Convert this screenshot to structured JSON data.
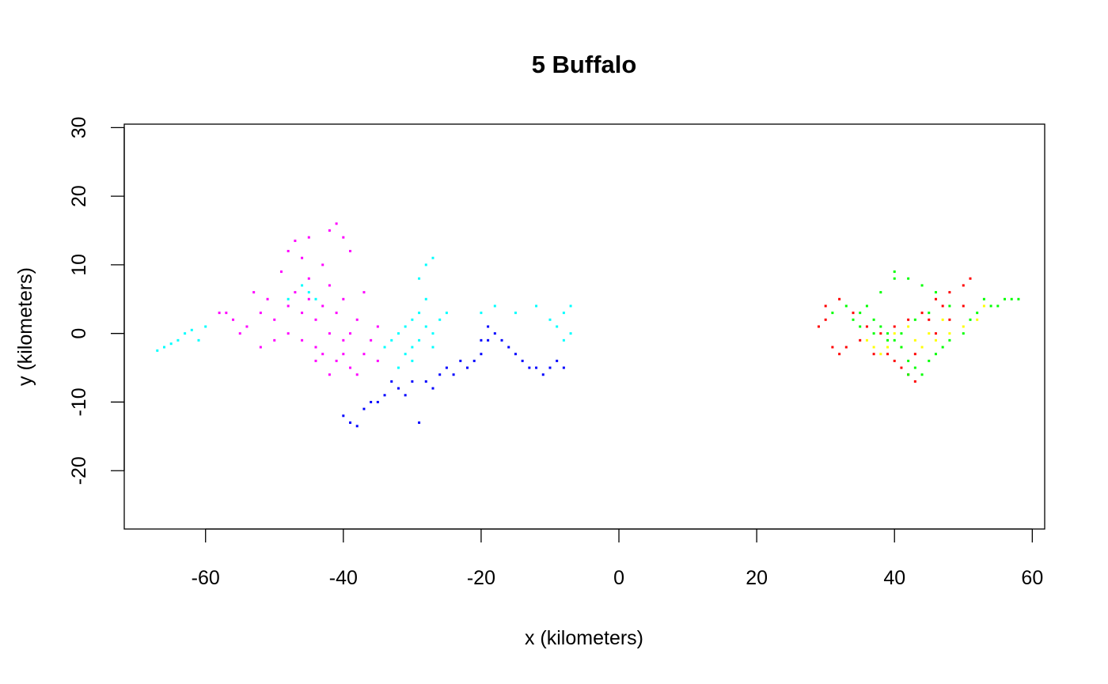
{
  "chart_data": {
    "type": "scatter",
    "title": "5 Buffalo",
    "xlabel": "x (kilometers)",
    "ylabel": "y (kilometers)",
    "xlim": [
      -71.8,
      61.8
    ],
    "ylim": [
      -28.5,
      30.5
    ],
    "xticks": [
      -60,
      -40,
      -20,
      0,
      20,
      40,
      60
    ],
    "yticks": [
      -20,
      -10,
      0,
      10,
      20,
      30
    ],
    "grid": false,
    "legend": "none",
    "series": [
      {
        "color": "#FF00FF",
        "points": [
          [
            -42,
            0
          ],
          [
            -44,
            2
          ],
          [
            -46,
            3
          ],
          [
            -40,
            -1
          ],
          [
            -48,
            4
          ],
          [
            -50,
            2
          ],
          [
            -52,
            3
          ],
          [
            -54,
            1
          ],
          [
            -56,
            2
          ],
          [
            -57,
            3
          ],
          [
            -43,
            -3
          ],
          [
            -41,
            -4
          ],
          [
            -39,
            -5
          ],
          [
            -37,
            -3
          ],
          [
            -36,
            -1
          ],
          [
            -38,
            2
          ],
          [
            -40,
            5
          ],
          [
            -42,
            7
          ],
          [
            -45,
            8
          ],
          [
            -47,
            6
          ],
          [
            -49,
            9
          ],
          [
            -48,
            12
          ],
          [
            -47,
            13.5
          ],
          [
            -45,
            14
          ],
          [
            -42,
            15
          ],
          [
            -41,
            16
          ],
          [
            -40,
            14
          ],
          [
            -39,
            12
          ],
          [
            -43,
            10
          ],
          [
            -46,
            11
          ],
          [
            -44,
            -2
          ],
          [
            -42,
            -6
          ],
          [
            -38,
            -6
          ],
          [
            -35,
            -4
          ],
          [
            -35,
            1
          ],
          [
            -37,
            6
          ],
          [
            -50,
            -1
          ],
          [
            -52,
            -2
          ],
          [
            -55,
            0
          ],
          [
            -58,
            3
          ],
          [
            -53,
            6
          ],
          [
            -45,
            5
          ],
          [
            -43,
            4
          ],
          [
            -41,
            3
          ],
          [
            -39,
            0
          ],
          [
            -40,
            -3
          ],
          [
            -44,
            -4
          ],
          [
            -46,
            -1
          ],
          [
            -48,
            0
          ],
          [
            -51,
            5
          ]
        ]
      },
      {
        "color": "#00FFFF",
        "points": [
          [
            -67,
            -2.5
          ],
          [
            -66,
            -2
          ],
          [
            -65,
            -1.5
          ],
          [
            -64,
            -1
          ],
          [
            -63,
            0
          ],
          [
            -62,
            0.5
          ],
          [
            -61,
            -1
          ],
          [
            -60,
            1
          ],
          [
            -32,
            0
          ],
          [
            -31,
            1
          ],
          [
            -30,
            2
          ],
          [
            -29,
            3
          ],
          [
            -28,
            1
          ],
          [
            -27,
            0
          ],
          [
            -29,
            -1
          ],
          [
            -30,
            -2
          ],
          [
            -31,
            -3
          ],
          [
            -33,
            -1
          ],
          [
            -28,
            5
          ],
          [
            -29,
            8
          ],
          [
            -28,
            10
          ],
          [
            -27,
            11
          ],
          [
            -26,
            2
          ],
          [
            -25,
            3
          ],
          [
            -27,
            -2
          ],
          [
            -30,
            -4
          ],
          [
            -32,
            -5
          ],
          [
            -34,
            -2
          ],
          [
            -20,
            3
          ],
          [
            -18,
            4
          ],
          [
            -15,
            3
          ],
          [
            -12,
            4
          ],
          [
            -10,
            2
          ],
          [
            -8,
            3
          ],
          [
            -7,
            4
          ],
          [
            -7,
            0
          ],
          [
            -8,
            -1
          ],
          [
            -9,
            1
          ],
          [
            -45,
            6
          ],
          [
            -46,
            7
          ],
          [
            -48,
            5
          ],
          [
            -44,
            5
          ]
        ]
      },
      {
        "color": "#0000FF",
        "points": [
          [
            -40,
            -12
          ],
          [
            -39,
            -13
          ],
          [
            -38,
            -13.5
          ],
          [
            -37,
            -11
          ],
          [
            -36,
            -10
          ],
          [
            -35,
            -10
          ],
          [
            -34,
            -9
          ],
          [
            -32,
            -8
          ],
          [
            -30,
            -7
          ],
          [
            -28,
            -7
          ],
          [
            -26,
            -6
          ],
          [
            -25,
            -5
          ],
          [
            -24,
            -6
          ],
          [
            -22,
            -5
          ],
          [
            -21,
            -4
          ],
          [
            -20,
            -3
          ],
          [
            -19,
            -1
          ],
          [
            -18,
            0
          ],
          [
            -17,
            -1
          ],
          [
            -16,
            -2
          ],
          [
            -15,
            -3
          ],
          [
            -14,
            -4
          ],
          [
            -13,
            -5
          ],
          [
            -12,
            -5
          ],
          [
            -11,
            -6
          ],
          [
            -10,
            -5
          ],
          [
            -9,
            -4
          ],
          [
            -8,
            -5
          ],
          [
            -19,
            1
          ],
          [
            -20,
            -1
          ],
          [
            -23,
            -4
          ],
          [
            -27,
            -8
          ],
          [
            -29,
            -13
          ],
          [
            -31,
            -9
          ],
          [
            -33,
            -7
          ]
        ]
      },
      {
        "color": "#FF0000",
        "points": [
          [
            29,
            1
          ],
          [
            30,
            2
          ],
          [
            31,
            -2
          ],
          [
            32,
            -3
          ],
          [
            33,
            -2
          ],
          [
            35,
            -1
          ],
          [
            36,
            1
          ],
          [
            38,
            0
          ],
          [
            40,
            1
          ],
          [
            42,
            2
          ],
          [
            44,
            3
          ],
          [
            46,
            5
          ],
          [
            48,
            6
          ],
          [
            50,
            7
          ],
          [
            51,
            8
          ],
          [
            47,
            4
          ],
          [
            45,
            2
          ],
          [
            43,
            -3
          ],
          [
            42,
            -6
          ],
          [
            43,
            -7
          ],
          [
            41,
            -5
          ],
          [
            40,
            -4
          ],
          [
            39,
            -3
          ],
          [
            34,
            3
          ],
          [
            32,
            5
          ],
          [
            30,
            4
          ],
          [
            46,
            0
          ],
          [
            48,
            2
          ],
          [
            50,
            4
          ],
          [
            37,
            -3
          ]
        ]
      },
      {
        "color": "#FFFF00",
        "points": [
          [
            36,
            -1
          ],
          [
            37,
            -2
          ],
          [
            38,
            -3
          ],
          [
            39,
            -2
          ],
          [
            40,
            0
          ],
          [
            42,
            1
          ],
          [
            44,
            -2
          ],
          [
            46,
            -1
          ],
          [
            48,
            0
          ],
          [
            50,
            1
          ],
          [
            52,
            2
          ],
          [
            53,
            4
          ],
          [
            47,
            2
          ],
          [
            45,
            0
          ],
          [
            43,
            -1
          ],
          [
            41,
            -2
          ]
        ]
      },
      {
        "color": "#00FF00",
        "points": [
          [
            31,
            3
          ],
          [
            33,
            4
          ],
          [
            35,
            3
          ],
          [
            37,
            2
          ],
          [
            38,
            1
          ],
          [
            39,
            0
          ],
          [
            40,
            -1
          ],
          [
            41,
            -2
          ],
          [
            42,
            -4
          ],
          [
            43,
            -5
          ],
          [
            42,
            -6
          ],
          [
            44,
            -6
          ],
          [
            45,
            -4
          ],
          [
            46,
            -3
          ],
          [
            47,
            -2
          ],
          [
            48,
            -1
          ],
          [
            50,
            0
          ],
          [
            51,
            2
          ],
          [
            52,
            3
          ],
          [
            53,
            5
          ],
          [
            54,
            4
          ],
          [
            55,
            4
          ],
          [
            56,
            5
          ],
          [
            57,
            5
          ],
          [
            58,
            5
          ],
          [
            36,
            4
          ],
          [
            38,
            6
          ],
          [
            40,
            8
          ],
          [
            40,
            9
          ],
          [
            42,
            8
          ],
          [
            44,
            7
          ],
          [
            46,
            6
          ],
          [
            45,
            3
          ],
          [
            43,
            2
          ],
          [
            41,
            0
          ],
          [
            39,
            -1
          ],
          [
            37,
            0
          ],
          [
            35,
            1
          ],
          [
            34,
            2
          ],
          [
            48,
            4
          ]
        ]
      }
    ]
  }
}
